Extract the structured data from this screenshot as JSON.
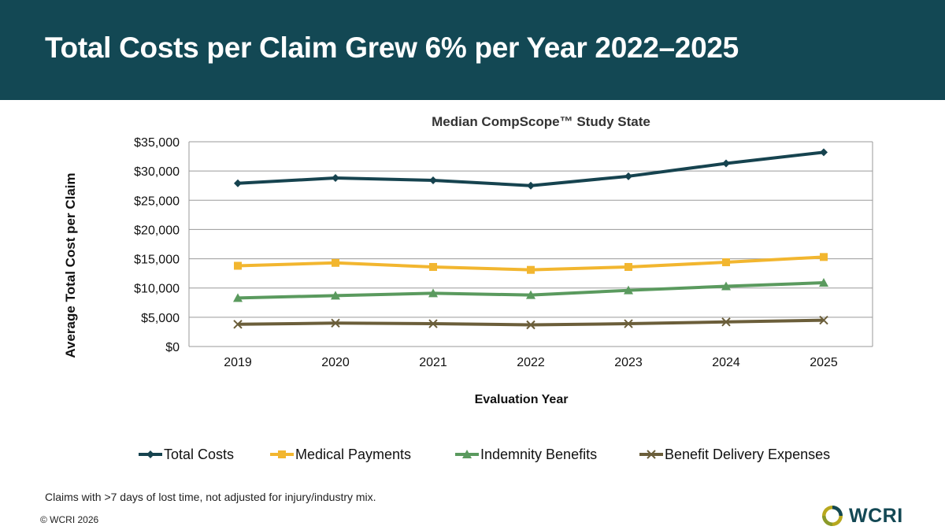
{
  "banner": {
    "title": "Total Costs per Claim Grew 6% per Year 2022–2025"
  },
  "footnote": "Claims with >7 days of lost time, not adjusted for injury/industry mix.",
  "copyright": "© WCRI 2026",
  "logo": {
    "text": "WCRI",
    "icon": "wcri-logo-icon"
  },
  "colors": {
    "banner": "#134854",
    "total_costs": "#16434F",
    "medical_payments": "#F2B62F",
    "indemnity_benefits": "#5A9A5E",
    "benefit_delivery": "#6B5E3A"
  },
  "chart_data": {
    "type": "line",
    "title": "Median CompScope™ Study State",
    "xlabel": "Evaluation Year",
    "ylabel": "Average Total Cost per Claim",
    "categories": [
      "2019",
      "2020",
      "2021",
      "2022",
      "2023",
      "2024",
      "2025"
    ],
    "ylim": [
      0,
      35000
    ],
    "yticks": [
      0,
      5000,
      10000,
      15000,
      20000,
      25000,
      30000,
      35000
    ],
    "ytick_labels": [
      "$0",
      "$5,000",
      "$10,000",
      "$15,000",
      "$20,000",
      "$25,000",
      "$30,000",
      "$35,000"
    ],
    "grid": true,
    "legend": "bottom",
    "series": [
      {
        "name": "Total Costs",
        "marker": "diamond",
        "color": "#16434F",
        "values": [
          27900,
          28800,
          28400,
          27500,
          29100,
          31300,
          33200
        ]
      },
      {
        "name": "Medical Payments",
        "marker": "square",
        "color": "#F2B62F",
        "values": [
          13800,
          14300,
          13600,
          13100,
          13600,
          14400,
          15300
        ]
      },
      {
        "name": "Indemnity Benefits",
        "marker": "triangle",
        "color": "#5A9A5E",
        "values": [
          8300,
          8700,
          9100,
          8800,
          9600,
          10300,
          10900
        ]
      },
      {
        "name": "Benefit Delivery Expenses",
        "marker": "x",
        "color": "#6B5E3A",
        "values": [
          3800,
          4000,
          3900,
          3700,
          3900,
          4200,
          4500
        ]
      }
    ]
  }
}
